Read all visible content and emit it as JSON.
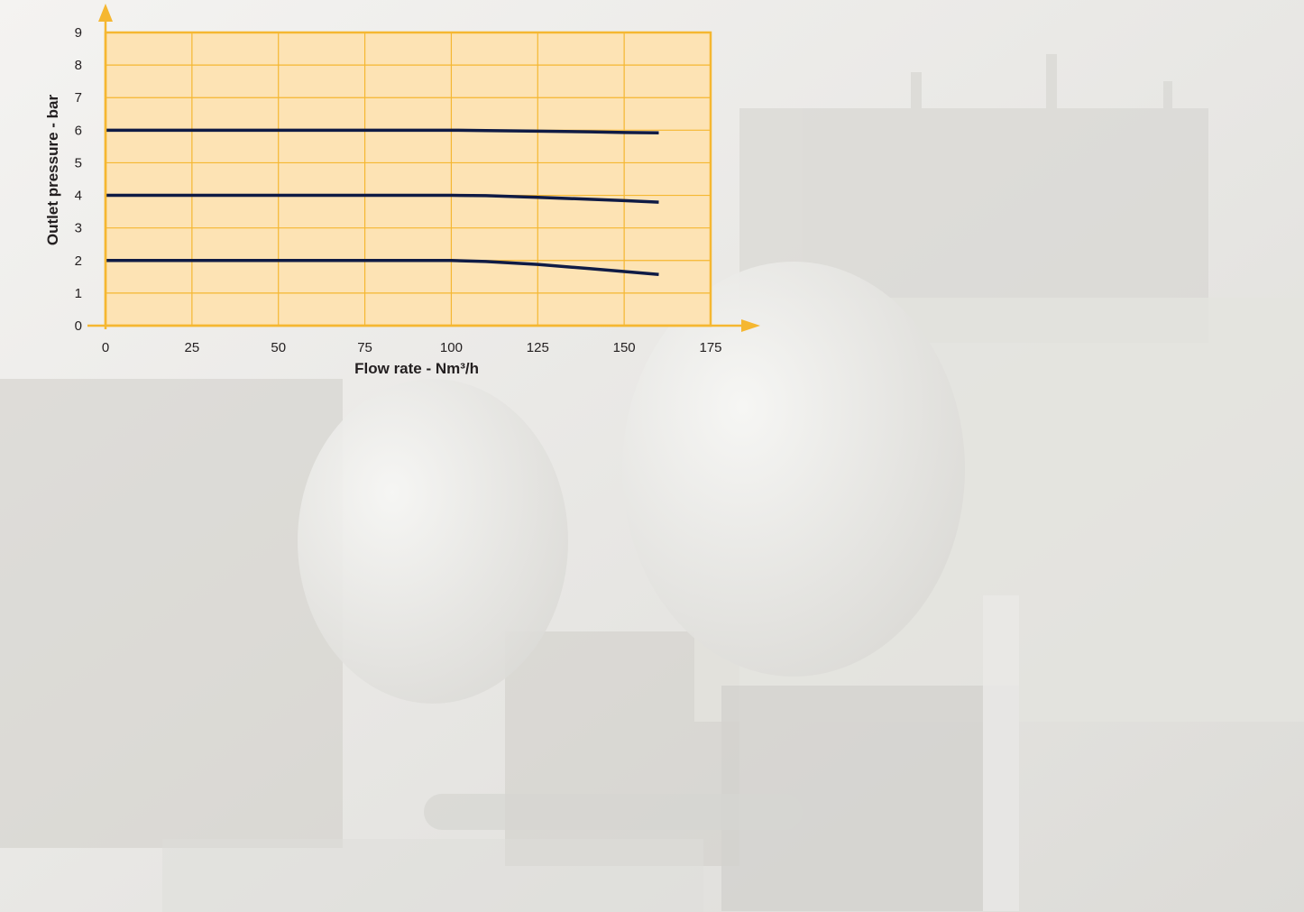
{
  "colors": {
    "plot_fill": "#fde3b4",
    "grid": "#f5b731",
    "axis": "#f5b731",
    "series": "#0f1b45",
    "text": "#231f20"
  },
  "chart_data": {
    "type": "line",
    "title": "",
    "xlabel": "Flow rate - Nm³/h",
    "ylabel": "Outlet pressure - bar",
    "xlim": [
      0,
      175
    ],
    "ylim": [
      0,
      9
    ],
    "xticks": [
      0,
      25,
      50,
      75,
      100,
      125,
      150,
      175
    ],
    "yticks": [
      0,
      1,
      2,
      3,
      4,
      5,
      6,
      7,
      8,
      9
    ],
    "grid": true,
    "legend": "none",
    "series": [
      {
        "x": [
          0,
          25,
          50,
          75,
          100,
          110,
          125,
          140,
          150,
          160
        ],
        "y": [
          6,
          6,
          6,
          6,
          6,
          5.99,
          5.97,
          5.95,
          5.93,
          5.92
        ]
      },
      {
        "x": [
          0,
          25,
          50,
          75,
          100,
          110,
          125,
          140,
          150,
          160
        ],
        "y": [
          4,
          4,
          4,
          4,
          4,
          3.99,
          3.94,
          3.88,
          3.84,
          3.79
        ]
      },
      {
        "x": [
          0,
          25,
          50,
          75,
          100,
          110,
          125,
          140,
          150,
          160
        ],
        "y": [
          2,
          2,
          2,
          2,
          2,
          1.97,
          1.88,
          1.75,
          1.66,
          1.57
        ]
      }
    ]
  }
}
